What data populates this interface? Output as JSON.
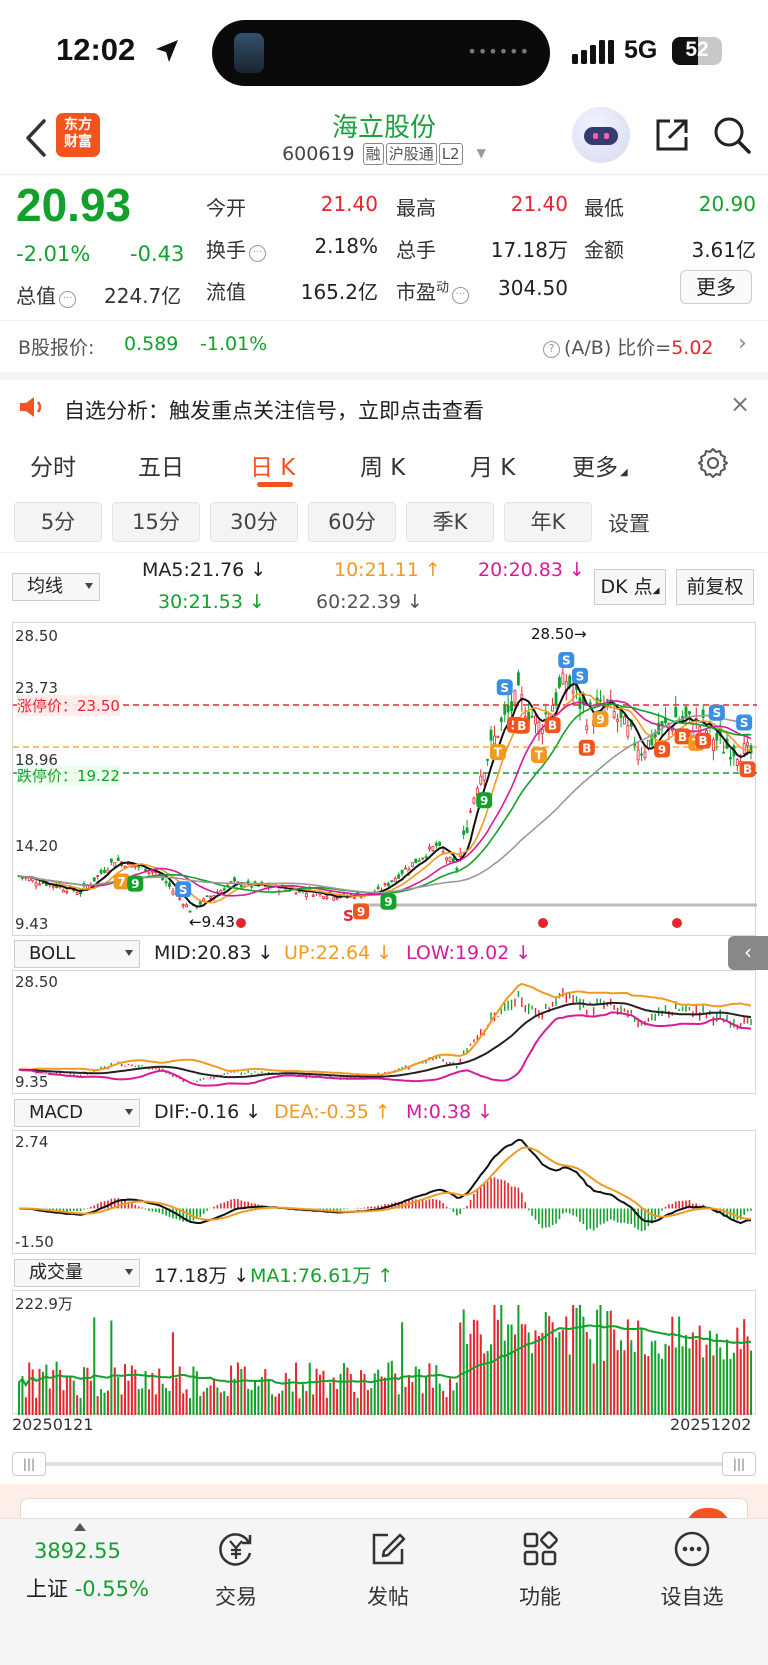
{
  "status_bar": {
    "time": "12:02",
    "network": "5G",
    "battery": "52",
    "battery_level": 0.52
  },
  "header": {
    "logo_text": [
      "东方",
      "财富"
    ],
    "stock_name": "海立股份",
    "stock_code": "600619",
    "tags": [
      "融",
      "沪股通",
      "L2"
    ]
  },
  "quote": {
    "price": "20.93",
    "change_pct": "-2.01%",
    "change": "-0.43",
    "open_label": "今开",
    "open": "21.40",
    "high_label": "最高",
    "high": "21.40",
    "low_label": "最低",
    "low": "20.90",
    "turnover_label": "换手",
    "turnover": "2.18%",
    "volume_label": "总手",
    "volume": "17.18万",
    "amount_label": "金额",
    "amount": "3.61亿",
    "mcap_label": "总值",
    "mcap": "224.7亿",
    "float_label": "流值",
    "float": "165.2亿",
    "pe_label": "市盈",
    "pe_sup": "动",
    "pe": "304.50",
    "more_label": "更多"
  },
  "bshare": {
    "label": "B股报价:",
    "price": "0.589",
    "pct": "-1.01%",
    "ratio_label": "(A/B) 比价=",
    "ratio": "5.02"
  },
  "notice": {
    "text": "自选分析：触发重点关注信号，立即点击查看",
    "close": "×"
  },
  "period_tabs": [
    "分时",
    "五日",
    "日 K",
    "周 K",
    "月 K",
    "更多"
  ],
  "sub_tabs": [
    "5分",
    "15分",
    "30分",
    "60分",
    "季K",
    "年K"
  ],
  "settings_label": "设置",
  "ma_row": {
    "selector": "均线",
    "ma5": "MA5:21.76 ↓",
    "ma10": "10:21.11 ↑",
    "ma20": "20:20.83 ↓",
    "ma30": "30:21.53 ↓",
    "ma60": "60:22.39 ↓",
    "dk_label": "DK 点",
    "adjust_label": "前复权"
  },
  "price_chart": {
    "y_labels": [
      "28.50",
      "23.73",
      "18.96",
      "14.20",
      "9.43"
    ],
    "limit_up_label": "涨停价：23.50",
    "limit_down_label": "跌停价：19.22",
    "high_marker": "28.50→",
    "low_marker": "←9.43",
    "s_marker": "S"
  },
  "boll": {
    "selector": "BOLL",
    "mid": "MID:20.83 ↓",
    "up": "UP:22.64 ↓",
    "low": "LOW:19.02 ↓",
    "y_top": "28.50",
    "y_bottom": "9.35"
  },
  "macd": {
    "selector": "MACD",
    "dif": "DIF:-0.16 ↓",
    "dea": "DEA:-0.35 ↑",
    "m": "M:0.38 ↓",
    "y_top": "2.74",
    "y_bottom": "-1.50"
  },
  "volume": {
    "selector": "成交量",
    "value": "17.18万 ↓",
    "ma1": "MA1:76.61万 ↑",
    "y_top": "222.9万"
  },
  "dates": {
    "start": "20250121",
    "end": "20251202"
  },
  "bottom_nav": {
    "index_value": "3892.55",
    "index_name": "上证",
    "index_pct": "-0.55%",
    "items": [
      "交易",
      "发帖",
      "功能",
      "设自选"
    ]
  },
  "colors": {
    "up": "#e5262f",
    "down": "#12a12b",
    "accent": "#f2541e"
  }
}
